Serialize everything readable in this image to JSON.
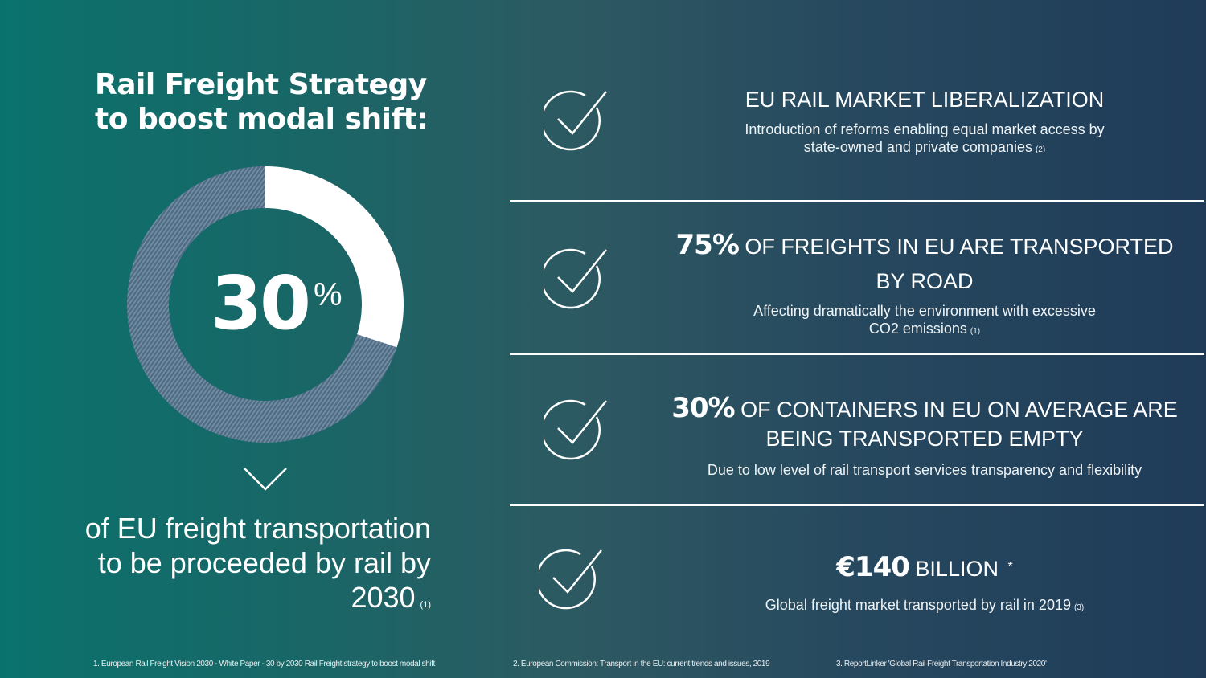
{
  "title": {
    "line1": "Rail Freight Strategy",
    "line2": "to boost modal shift:"
  },
  "share": {
    "number": "30",
    "percent_sign": "%",
    "value_percent": 30,
    "fill_color": "#ffffff",
    "rest_color": "#4f6e86"
  },
  "goal": {
    "line1": "of EU freight transportation",
    "line2": "to be proceeded by rail by",
    "line3": "2030",
    "ref": "(1)"
  },
  "items": [
    {
      "icon": "check-circle-icon",
      "title": "EU RAIL MARKET LIBERALIZATION",
      "desc_line1": "Introduction of reforms enabling equal market access by",
      "desc_line2": "state-owned and private companies",
      "ref": "(2)"
    },
    {
      "icon": "check-circle-icon",
      "highlight": "75%",
      "title": "OF FREIGHTS IN EU ARE TRANSPORTED BY ROAD",
      "desc_line1": "Affecting dramatically the environment with excessive",
      "desc_line2": "CO2 emissions",
      "ref": "(1)"
    },
    {
      "icon": "check-circle-icon",
      "highlight": "30%",
      "title": "OF CONTAINERS IN EU ON AVERAGE ARE BEING TRANSPORTED EMPTY",
      "desc_line1": "Due to low level of rail transport services transparency and flexibility"
    },
    {
      "icon": "check-circle-icon",
      "highlight": "€140",
      "title": "BILLION",
      "asterisk": "*",
      "desc_line1": "Global freight market transported by rail in 2019",
      "ref": "(3)"
    }
  ],
  "footnotes": [
    "1. European Rail Freight Vision 2030 - White Paper - 30 by 2030 Rail Freight strategy to boost modal shift",
    "2. European Commission: Transport in the EU: current trends and issues, 2019",
    "3. ReportLinker 'Global Rail Freight Transportation Industry 2020'"
  ]
}
